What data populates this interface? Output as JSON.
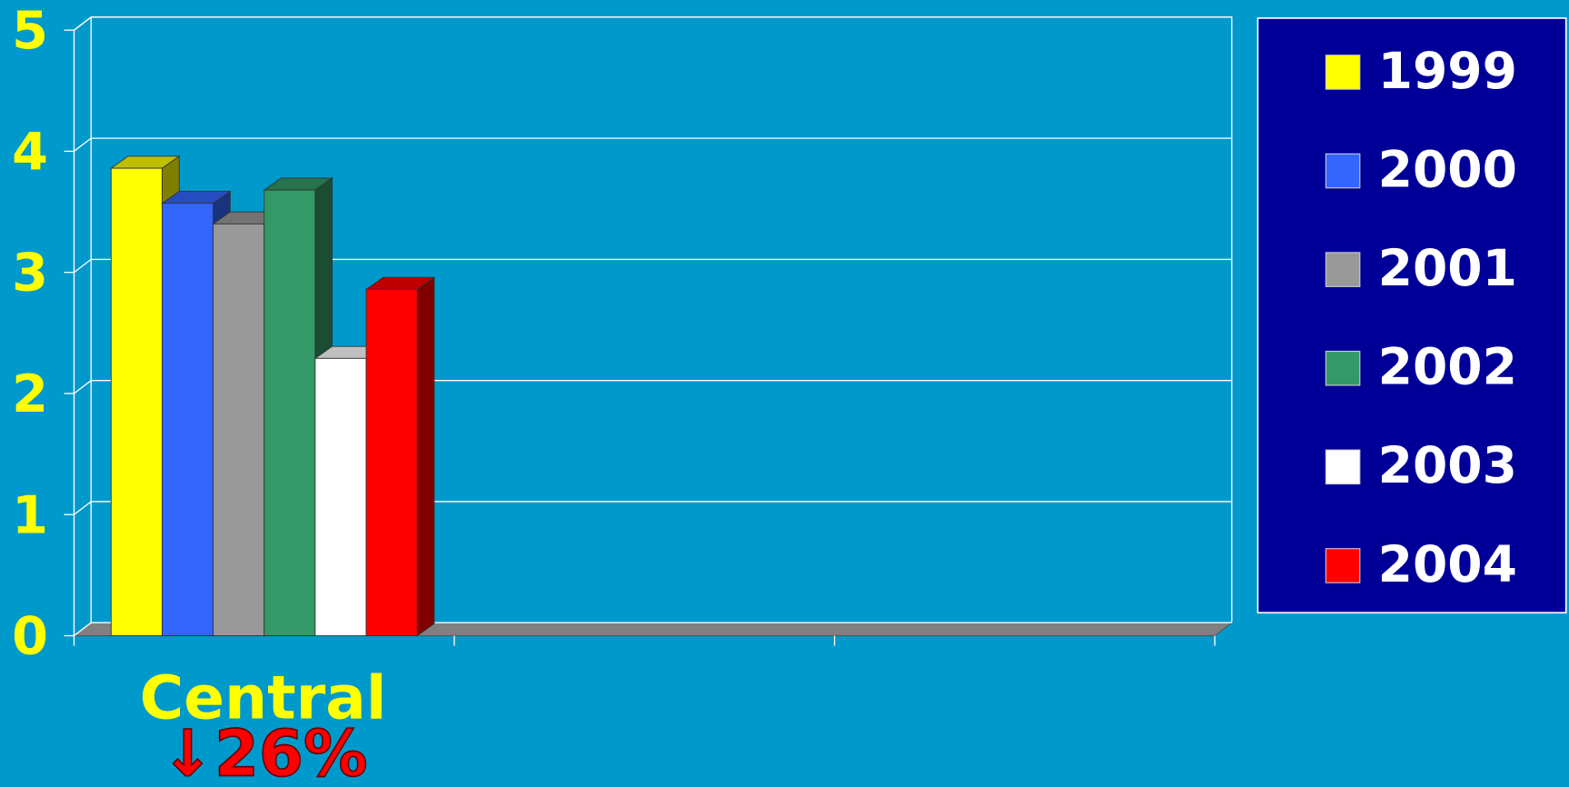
{
  "chart_data": {
    "type": "bar3d",
    "categories": [
      "Central",
      null,
      null
    ],
    "series": [
      {
        "name": "1999",
        "color": "#ffff00",
        "values": [
          3.86,
          null,
          null
        ]
      },
      {
        "name": "2000",
        "color": "#3366ff",
        "values": [
          3.57,
          null,
          null
        ]
      },
      {
        "name": "2001",
        "color": "#999999",
        "values": [
          3.4,
          null,
          null
        ]
      },
      {
        "name": "2002",
        "color": "#339966",
        "values": [
          3.68,
          null,
          null
        ]
      },
      {
        "name": "2003",
        "color": "#ffffff",
        "values": [
          2.29,
          null,
          null
        ]
      },
      {
        "name": "2004",
        "color": "#ff0000",
        "values": [
          2.86,
          null,
          null
        ]
      }
    ],
    "annotation": "↓26%",
    "ylim": [
      0,
      5
    ],
    "yticks": [
      0,
      1,
      2,
      3,
      4,
      5
    ],
    "grid": true,
    "legend": "right"
  }
}
